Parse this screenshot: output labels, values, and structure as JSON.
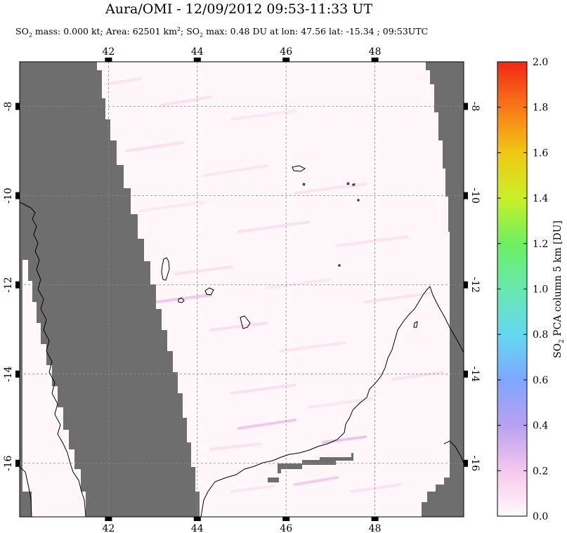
{
  "chart_data": {
    "type": "heatmap",
    "title": "Aura/OMI - 12/09/2012 09:53-11:33 UT",
    "subtitle": {
      "pre": "SO",
      "sub1": "2",
      "mid1": " mass: 0.000 kt; Area: 62501 km",
      "sup": "2",
      "mid2": "; SO",
      "sub2": "2",
      "post": " max: 0.48 DU at lon: 47.56 lat: -15.34 ; 09:53UTC"
    },
    "xlim": [
      40.0,
      50.0
    ],
    "ylim": [
      -17.2,
      -7.0
    ],
    "x_ticks": [
      {
        "value": 42,
        "label": "42"
      },
      {
        "value": 44,
        "label": "44"
      },
      {
        "value": 46,
        "label": "46"
      },
      {
        "value": 48,
        "label": "48"
      }
    ],
    "y_ticks": [
      {
        "value": -8,
        "label": "-8"
      },
      {
        "value": -10,
        "label": "-10"
      },
      {
        "value": -12,
        "label": "-12"
      },
      {
        "value": -14,
        "label": "-14"
      },
      {
        "value": -16,
        "label": "-16"
      }
    ],
    "grid": true,
    "colorbar": {
      "label": "SO2 PCA column 5 km [DU]",
      "label_pre": "SO",
      "label_sub": "2",
      "label_post": " PCA column 5 km [DU]",
      "min": 0.0,
      "max": 2.0,
      "ticks": [
        "0.0",
        "0.2",
        "0.4",
        "0.6",
        "0.8",
        "1.0",
        "1.2",
        "1.4",
        "1.6",
        "1.8",
        "2.0"
      ],
      "colors": [
        "#fffafa",
        "#f6c8ec",
        "#b8a0f0",
        "#7ea6ff",
        "#64d8f0",
        "#66e8b0",
        "#6cf060",
        "#c8f028",
        "#f0c814",
        "#f87818",
        "#f02814"
      ]
    },
    "max_value": 0.48,
    "max_lon": 47.56,
    "max_lat": -15.34,
    "no_data_color": "#6e6e6e",
    "background_color": "#fff7f9"
  }
}
